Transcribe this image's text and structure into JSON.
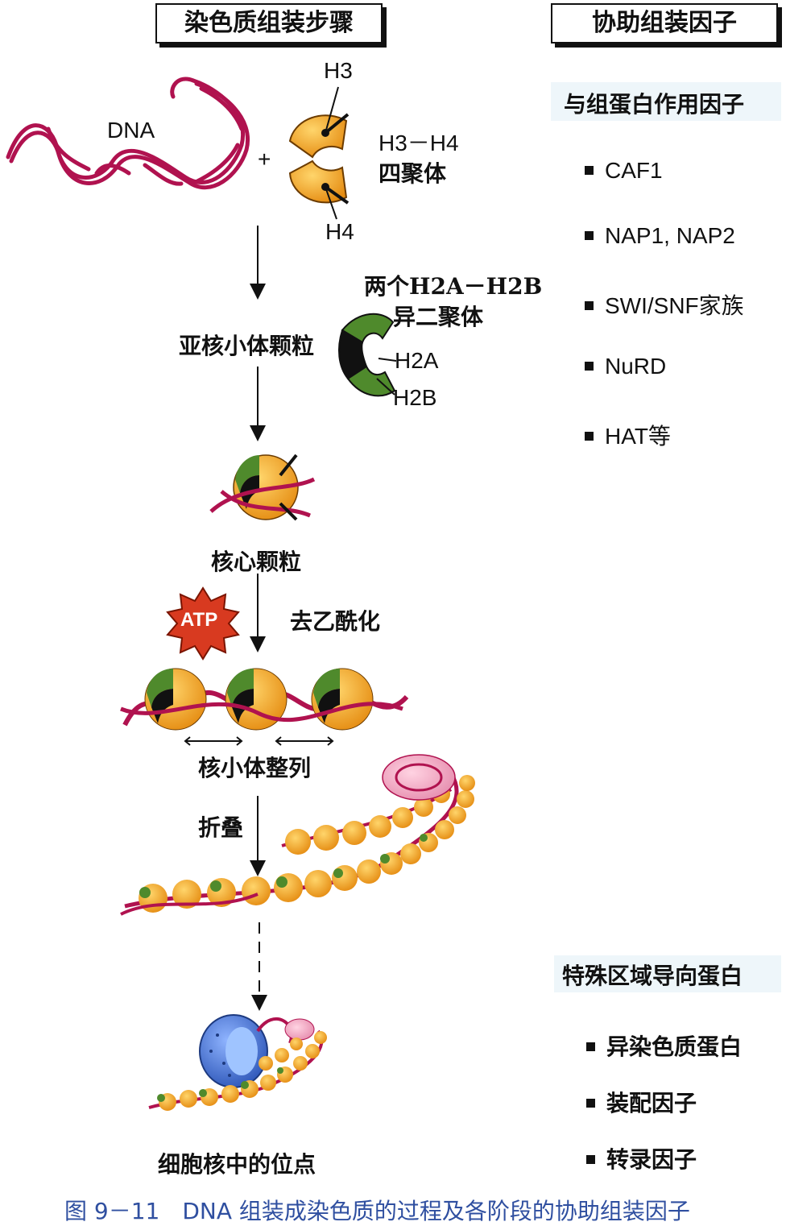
{
  "headers": {
    "steps": "染色质组装步骤",
    "factors": "协助组装因子"
  },
  "labels": {
    "dna": "DNA",
    "plus": "+",
    "h3": "H3",
    "h4": "H4",
    "h3h4_line1": "H3－H4",
    "h3h4_line2": "四聚体",
    "h2a_h2b_line1": "两个H2A－H2B",
    "h2a_h2b_line2": "异二聚体",
    "h2a": "H2A",
    "h2b": "H2B",
    "subnucleosome": "亚核小体颗粒",
    "core_particle": "核心颗粒",
    "atp": "ATP",
    "deacetylation": "去乙酰化",
    "nucleosome_spacing": "核小体整列",
    "folding": "折叠",
    "nuclear_site": "细胞核中的位点"
  },
  "histone_factors": {
    "title": "与组蛋白作用因子",
    "items": [
      "CAF1",
      "NAP1, NAP2",
      "SWI/SNF家族",
      "NuRD",
      "HAT等"
    ]
  },
  "targeting_factors": {
    "title": "特殊区域导向蛋白",
    "items": [
      "异染色质蛋白",
      "装配因子",
      "转录因子"
    ]
  },
  "caption": "图 9－11　DNA 组装成染色质的过程及各阶段的协助组装因子",
  "colors": {
    "dna": "#b0124f",
    "histone_orange": "#f2a224",
    "histone_green": "#4f8a2c",
    "histone_black": "#111111",
    "atp_red": "#d83a20",
    "nucleus_blue": "#3e6fd1",
    "caption_blue": "#2f4fa0"
  }
}
